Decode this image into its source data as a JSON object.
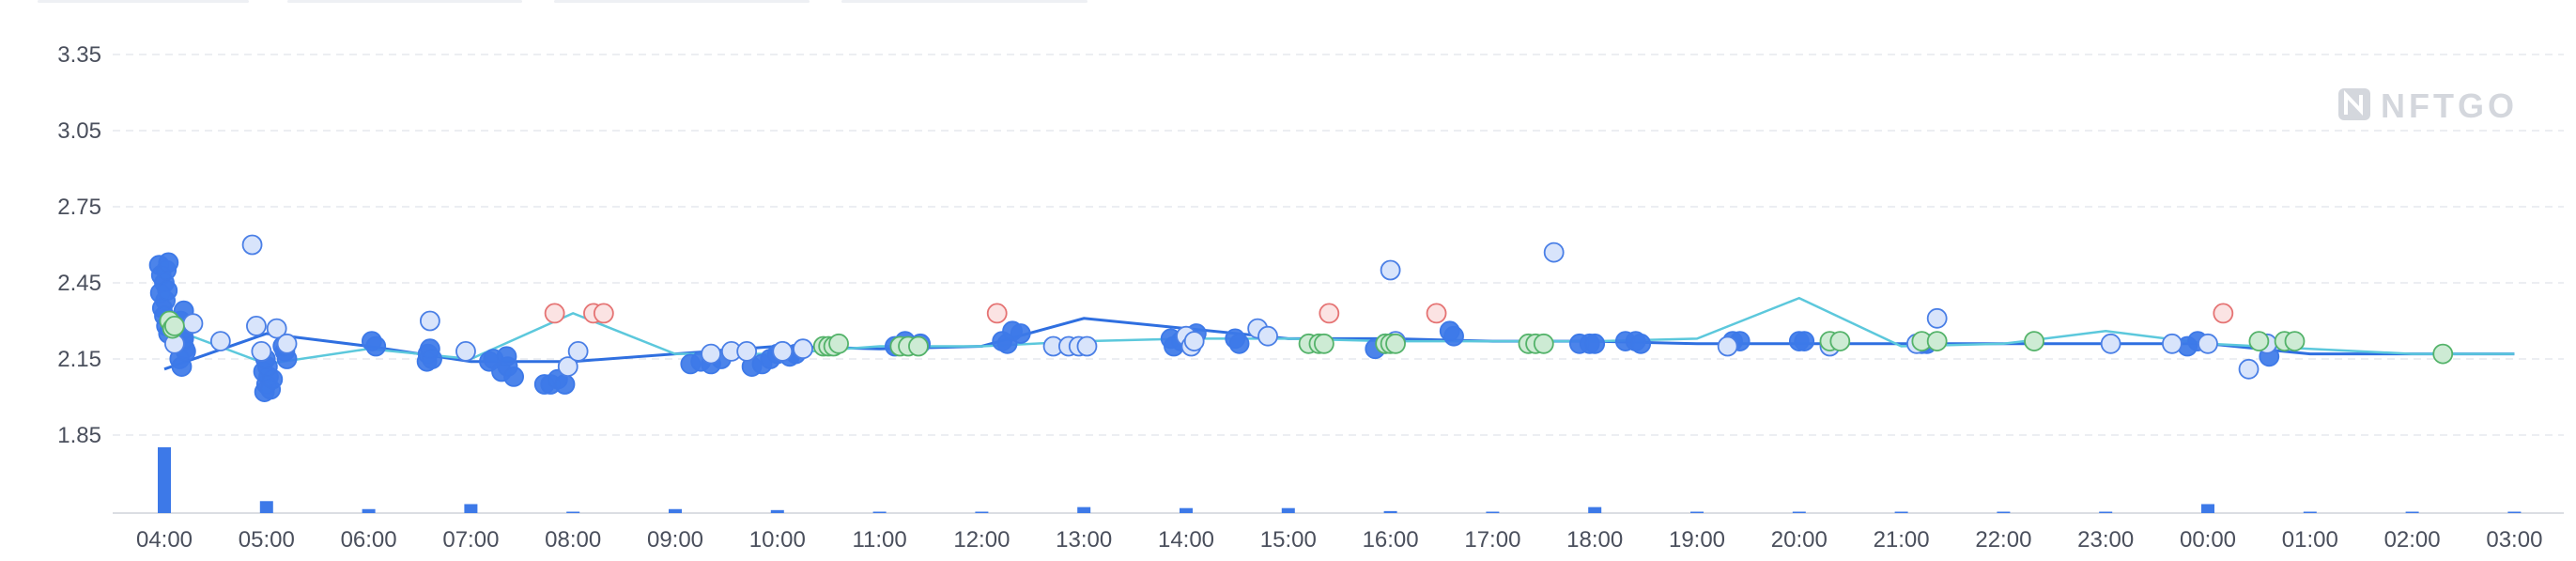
{
  "watermark": {
    "text": "NFTGO"
  },
  "colors": {
    "avg_line": "#2f6fe0",
    "floor_line": "#5cc8dc",
    "dot_blue": "#3d79e8",
    "dot_light": "#d8e4fb",
    "dot_light_stroke": "#4a7fe6",
    "dot_green": "#54b36a",
    "dot_green_fill": "#cdebd4",
    "dot_red": "#e57373",
    "dot_red_fill": "#fbe3e3",
    "volume_bar": "#3d79e8",
    "grid": "#e6e9ee"
  },
  "chart_data": {
    "type": "scatter",
    "title": "",
    "xlabel": "",
    "ylabel": "",
    "x_ticks": [
      "04:00",
      "05:00",
      "06:00",
      "07:00",
      "08:00",
      "09:00",
      "10:00",
      "11:00",
      "12:00",
      "13:00",
      "14:00",
      "15:00",
      "16:00",
      "17:00",
      "18:00",
      "19:00",
      "20:00",
      "21:00",
      "22:00",
      "23:00",
      "00:00",
      "01:00",
      "02:00",
      "03:00"
    ],
    "y_ticks": [
      "1.85",
      "2.15",
      "2.45",
      "2.75",
      "3.05",
      "3.35"
    ],
    "y_tick_values": [
      1.85,
      2.15,
      2.45,
      2.75,
      3.05,
      3.35
    ],
    "xlim": [
      -0.5,
      23.5
    ],
    "ylim": [
      1.55,
      3.43
    ],
    "grid": true,
    "series": [
      {
        "kind": "line",
        "style": "avg",
        "x": [
          0.0,
          1.0,
          2.0,
          3.0,
          4.0,
          5.0,
          6.0,
          7.0,
          8.0,
          9.0,
          10.0,
          11.0,
          12.0,
          13.0,
          14.0,
          15.0,
          16.0,
          17.0,
          18.0,
          19.0,
          20.0,
          21.0,
          22.0,
          23.0
        ],
        "y": [
          2.11,
          2.25,
          2.2,
          2.14,
          2.14,
          2.17,
          2.2,
          2.19,
          2.2,
          2.31,
          2.27,
          2.23,
          2.23,
          2.22,
          2.22,
          2.21,
          2.21,
          2.21,
          2.21,
          2.21,
          2.21,
          2.17,
          2.17,
          2.17
        ]
      },
      {
        "kind": "line",
        "style": "floor",
        "x": [
          0.0,
          1.0,
          2.0,
          3.0,
          4.0,
          5.0,
          6.0,
          7.0,
          8.0,
          9.0,
          10.0,
          11.0,
          12.0,
          13.0,
          14.0,
          15.0,
          16.0,
          17.0,
          18.0,
          19.0,
          20.0,
          21.0,
          22.0,
          23.0
        ],
        "y": [
          2.28,
          2.13,
          2.19,
          2.15,
          2.33,
          2.17,
          2.17,
          2.2,
          2.2,
          2.22,
          2.23,
          2.23,
          2.22,
          2.22,
          2.22,
          2.23,
          2.39,
          2.2,
          2.21,
          2.26,
          2.21,
          2.19,
          2.17,
          2.17
        ]
      },
      {
        "kind": "points",
        "style": "blue",
        "x": [
          -0.05,
          -0.03,
          0.0,
          0.02,
          0.04,
          -0.04,
          0.01,
          0.03,
          -0.02,
          0.0,
          0.05,
          0.02,
          0.04,
          0.15,
          0.18,
          0.2,
          0.15,
          0.17,
          0.21,
          0.19,
          0.16,
          0.19,
          0.2,
          0.98,
          1.0,
          1.02,
          0.97,
          1.04,
          1.06,
          1.01,
          0.99,
          1.18,
          1.2,
          1.16,
          2.03,
          2.07,
          2.57,
          2.58,
          2.6,
          2.62,
          3.18,
          3.22,
          3.3,
          3.36,
          3.35,
          3.42,
          3.72,
          3.78,
          3.85,
          3.92,
          5.15,
          5.25,
          5.35,
          5.45,
          5.75,
          5.85,
          5.93,
          6.0,
          6.05,
          6.12,
          6.18,
          7.15,
          7.25,
          7.4,
          8.2,
          8.25,
          8.3,
          8.38,
          9.85,
          9.95,
          10.05,
          10.1,
          9.88,
          10.48,
          10.52,
          11.85,
          11.95,
          12.58,
          12.62,
          13.85,
          13.95,
          14.0,
          14.3,
          14.4,
          14.45,
          15.35,
          15.42,
          16.0,
          16.05,
          17.2,
          17.25,
          19.8,
          19.9,
          20.6
        ],
        "y": [
          2.52,
          2.48,
          2.45,
          2.5,
          2.53,
          2.41,
          2.38,
          2.42,
          2.35,
          2.32,
          2.3,
          2.28,
          2.25,
          2.25,
          2.22,
          2.19,
          2.15,
          2.12,
          2.18,
          2.23,
          2.3,
          2.34,
          2.27,
          2.02,
          2.05,
          2.08,
          2.1,
          2.03,
          2.07,
          2.12,
          2.15,
          2.18,
          2.15,
          2.2,
          2.22,
          2.2,
          2.14,
          2.17,
          2.19,
          2.15,
          2.14,
          2.15,
          2.1,
          2.12,
          2.16,
          2.08,
          2.05,
          2.05,
          2.07,
          2.05,
          2.13,
          2.14,
          2.13,
          2.15,
          2.12,
          2.13,
          2.15,
          2.17,
          2.18,
          2.16,
          2.17,
          2.2,
          2.22,
          2.21,
          2.22,
          2.21,
          2.26,
          2.25,
          2.23,
          2.22,
          2.23,
          2.25,
          2.2,
          2.23,
          2.21,
          2.19,
          2.21,
          2.26,
          2.24,
          2.21,
          2.21,
          2.21,
          2.22,
          2.22,
          2.21,
          2.22,
          2.22,
          2.22,
          2.22,
          2.21,
          2.21,
          2.2,
          2.22,
          2.16
        ]
      },
      {
        "kind": "points",
        "style": "light",
        "x": [
          0.1,
          0.28,
          0.55,
          0.86,
          0.9,
          0.95,
          1.1,
          1.2,
          2.6,
          2.95,
          3.95,
          4.05,
          5.35,
          5.55,
          5.7,
          6.05,
          6.25,
          8.7,
          8.85,
          8.95,
          9.03,
          10.0,
          10.05,
          10.08,
          10.7,
          10.8,
          12.0,
          12.05,
          13.6,
          15.3,
          16.3,
          17.35,
          17.15,
          19.05,
          19.65,
          20.0,
          20.4,
          20.58
        ],
        "y": [
          2.21,
          2.29,
          2.22,
          2.6,
          2.28,
          2.18,
          2.27,
          2.21,
          2.3,
          2.18,
          2.12,
          2.18,
          2.17,
          2.18,
          2.18,
          2.18,
          2.19,
          2.2,
          2.2,
          2.2,
          2.2,
          2.24,
          2.2,
          2.22,
          2.27,
          2.24,
          2.5,
          2.22,
          2.57,
          2.2,
          2.2,
          2.31,
          2.21,
          2.21,
          2.21,
          2.21,
          2.11,
          2.21
        ],
        "x_ext_note": ""
      },
      {
        "kind": "points",
        "style": "green",
        "x": [
          0.05,
          0.08,
          0.1,
          6.45,
          6.5,
          6.55,
          6.6,
          7.2,
          7.28,
          7.38,
          11.2,
          11.3,
          11.35,
          11.95,
          12.0,
          12.05,
          13.35,
          13.42,
          13.5,
          16.3,
          16.4,
          17.2,
          17.35,
          18.3,
          20.5,
          20.75,
          20.85,
          22.3
        ],
        "y": [
          2.3,
          2.27,
          2.28,
          2.2,
          2.2,
          2.2,
          2.21,
          2.2,
          2.2,
          2.2,
          2.21,
          2.21,
          2.21,
          2.21,
          2.21,
          2.21,
          2.21,
          2.21,
          2.21,
          2.22,
          2.22,
          2.22,
          2.22,
          2.22,
          2.22,
          2.22,
          2.22,
          2.17
        ]
      },
      {
        "kind": "points",
        "style": "red",
        "x": [
          3.82,
          4.2,
          4.3,
          8.15,
          11.4,
          12.45,
          20.15
        ],
        "y": [
          2.33,
          2.33,
          2.33,
          2.33,
          2.33,
          2.33,
          2.33
        ]
      },
      {
        "kind": "bars",
        "style": "volume",
        "x": [
          0,
          1,
          2,
          3,
          4,
          5,
          6,
          7,
          8,
          9,
          10,
          11,
          12,
          13,
          14,
          15,
          16,
          17,
          18,
          19,
          20,
          21,
          22,
          23
        ],
        "y": [
          66,
          12,
          4,
          9,
          0.5,
          4,
          3,
          0.5,
          0.5,
          6,
          5,
          5,
          2,
          1,
          6,
          1,
          0.5,
          0.5,
          0.5,
          0.5,
          9,
          0.5,
          0.5,
          0.5
        ]
      }
    ]
  }
}
